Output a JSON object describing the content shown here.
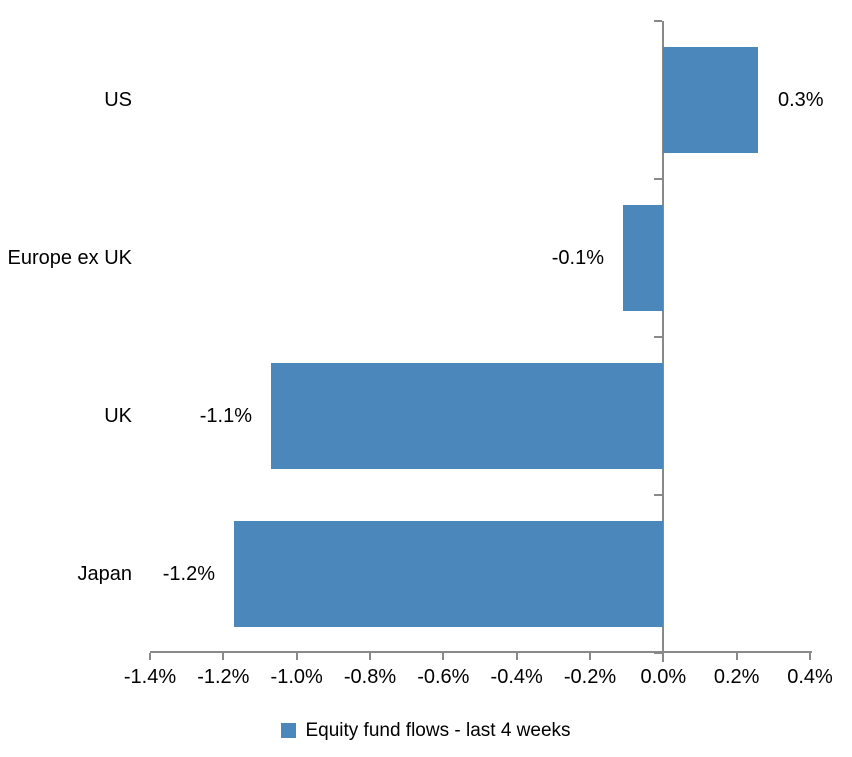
{
  "chart_data": {
    "type": "bar",
    "orientation": "horizontal",
    "title": "",
    "xlabel": "",
    "ylabel": "",
    "categories": [
      "US",
      "Europe ex UK",
      "UK",
      "Japan"
    ],
    "series": [
      {
        "name": "Equity fund flows - last 4 weeks",
        "values": [
          0.26,
          -0.11,
          -1.07,
          -1.17
        ],
        "data_labels": [
          "0.3%",
          "-0.1%",
          "-1.1%",
          "-1.2%"
        ]
      }
    ],
    "series_name": "Equity fund flows - last 4 weeks",
    "x_ticks": [
      "-1.4%",
      "-1.2%",
      "-1.0%",
      "-0.8%",
      "-0.6%",
      "-0.4%",
      "-0.2%",
      "0.0%",
      "0.2%",
      "0.4%"
    ],
    "x_tick_values": [
      -1.4,
      -1.2,
      -1.0,
      -0.8,
      -0.6,
      -0.4,
      -0.2,
      0.0,
      0.2,
      0.4
    ],
    "xlim": [
      -1.4,
      0.4
    ],
    "grid": false,
    "legend_position": "bottom",
    "bar_color": "#4C87BB",
    "axis_color": "#898989",
    "text_color": "#000000",
    "background_color": "#ffffff"
  },
  "legend": {
    "label": "Equity fund flows - last 4 weeks"
  }
}
